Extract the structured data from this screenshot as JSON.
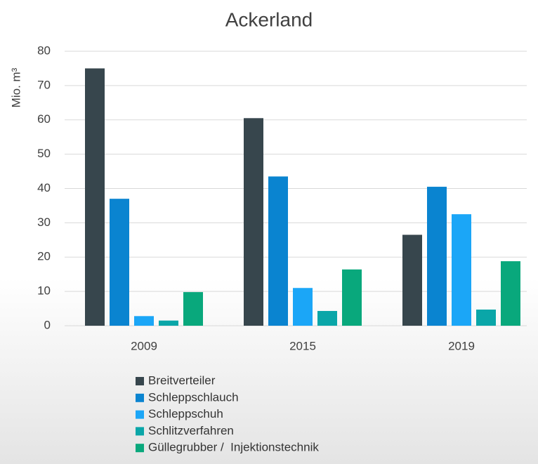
{
  "chart_data": {
    "type": "bar",
    "title": "Ackerland",
    "y_label": "Mio. m³",
    "categories": [
      "2009",
      "2015",
      "2019"
    ],
    "series": [
      {
        "name": "Breitverteiler",
        "color": "#37464d",
        "values": [
          75,
          60.5,
          26.5
        ]
      },
      {
        "name": "Schleppschlauch",
        "color": "#0a84d0",
        "values": [
          37,
          43.5,
          40.5
        ]
      },
      {
        "name": "Schleppschuh",
        "color": "#1ba6f7",
        "values": [
          2.8,
          11,
          32.5
        ]
      },
      {
        "name": "Schlitzverfahren",
        "color": "#0aa6a8",
        "values": [
          1.5,
          4.3,
          4.7
        ]
      },
      {
        "name": "Güllegrubber /  Injektionstechnik",
        "color": "#09a87c",
        "values": [
          9.8,
          16.4,
          18.8
        ]
      }
    ],
    "ylim": [
      0,
      80
    ],
    "yticks": [
      0,
      10,
      20,
      30,
      40,
      50,
      60,
      70,
      80
    ],
    "grid": true,
    "legend": "bottom"
  }
}
